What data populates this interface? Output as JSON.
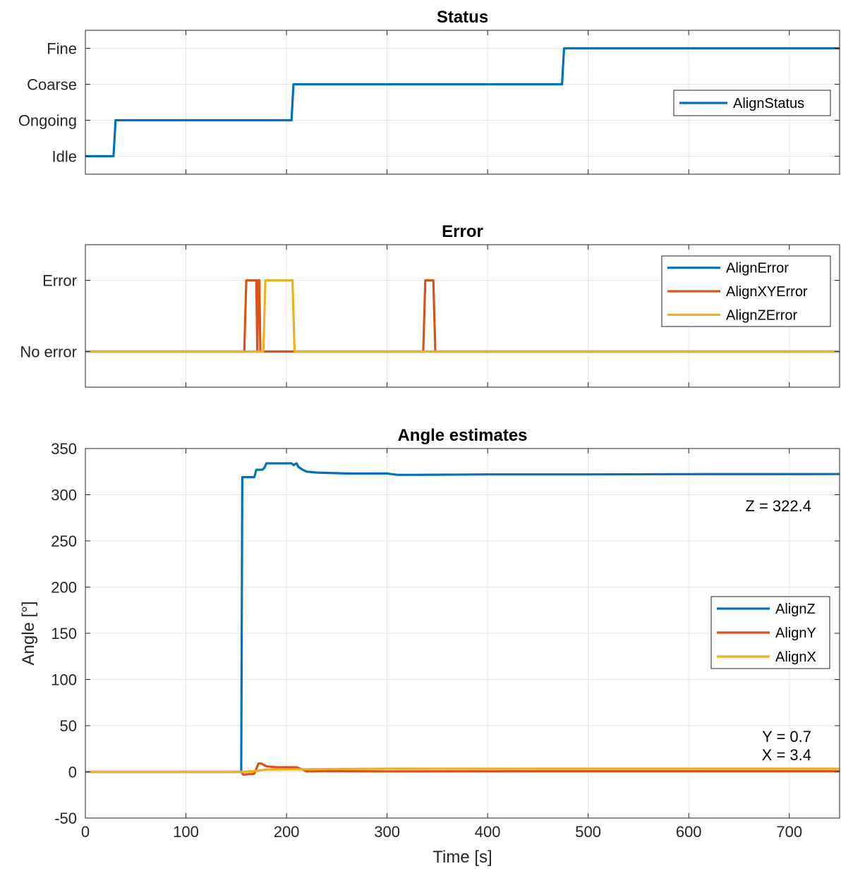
{
  "chart_data": [
    {
      "type": "line",
      "title": "Status",
      "xlim": [
        0,
        750
      ],
      "x_ticks": [
        0,
        100,
        200,
        300,
        400,
        500,
        600,
        700
      ],
      "ylim": [
        -0.5,
        3.5
      ],
      "y_ticks": [
        0,
        1,
        2,
        3
      ],
      "y_tick_labels": [
        "Idle",
        "Ongoing",
        "Coarse",
        "Fine"
      ],
      "grid": true,
      "legend_location": "right",
      "series": [
        {
          "name": "AlignStatus",
          "color": "#0072BD",
          "x": [
            0,
            28,
            30,
            205,
            207,
            474,
            476,
            750
          ],
          "y": [
            0,
            0,
            1,
            1,
            2,
            2,
            3,
            3
          ]
        }
      ]
    },
    {
      "type": "line",
      "title": "Error",
      "xlim": [
        0,
        750
      ],
      "x_ticks": [
        0,
        100,
        200,
        300,
        400,
        500,
        600,
        700
      ],
      "ylim": [
        -0.5,
        1.5
      ],
      "y_ticks": [
        0,
        1
      ],
      "y_tick_labels": [
        "No error",
        "Error"
      ],
      "grid": true,
      "legend_location": "top-right",
      "series": [
        {
          "name": "AlignError",
          "color": "#0072BD",
          "x": [
            0,
            750
          ],
          "y": [
            0,
            0
          ]
        },
        {
          "name": "AlignXYError",
          "color": "#D95319",
          "x": [
            0,
            158,
            160,
            170,
            171,
            172,
            173,
            174,
            175,
            205,
            206,
            336,
            338,
            346,
            348,
            750
          ],
          "y": [
            0,
            0,
            1,
            1,
            0,
            1,
            1,
            0,
            0,
            0,
            0,
            0,
            1,
            1,
            0,
            0
          ]
        },
        {
          "name": "AlignZError",
          "color": "#EDB120",
          "x": [
            0,
            177,
            179,
            206,
            208,
            750
          ],
          "y": [
            0,
            0,
            1,
            1,
            0,
            0
          ]
        }
      ]
    },
    {
      "type": "line",
      "title": "Angle estimates",
      "xlabel": "Time [s]",
      "ylabel": "Angle [°]",
      "xlim": [
        0,
        750
      ],
      "x_ticks": [
        0,
        100,
        200,
        300,
        400,
        500,
        600,
        700
      ],
      "ylim": [
        -50,
        350
      ],
      "y_ticks": [
        -50,
        0,
        50,
        100,
        150,
        200,
        250,
        300,
        350
      ],
      "grid": true,
      "legend_location": "right",
      "series": [
        {
          "name": "AlignZ",
          "color": "#0072BD",
          "x": [
            0,
            155,
            156,
            168,
            170,
            176,
            178,
            180,
            182,
            205,
            207,
            210,
            212,
            216,
            220,
            230,
            260,
            300,
            310,
            330,
            400,
            500,
            600,
            750
          ],
          "y": [
            0,
            0,
            319,
            319,
            327,
            327,
            329,
            334,
            334,
            334,
            332,
            334,
            330,
            327,
            325,
            324,
            323,
            323,
            321.5,
            321.5,
            322,
            322,
            322.3,
            322.4
          ]
        },
        {
          "name": "AlignY",
          "color": "#D95319",
          "x": [
            0,
            155,
            157,
            168,
            172,
            175,
            180,
            190,
            210,
            215,
            220,
            240,
            300,
            400,
            500,
            600,
            750
          ],
          "y": [
            0,
            0,
            -3,
            -2,
            9,
            9,
            6,
            5,
            5,
            3,
            0.5,
            0.8,
            0.5,
            0.6,
            0.7,
            0.7,
            0.7
          ]
        },
        {
          "name": "AlignX",
          "color": "#EDB120",
          "x": [
            0,
            155,
            170,
            180,
            200,
            230,
            260,
            300,
            400,
            500,
            600,
            750
          ],
          "y": [
            0,
            0,
            1,
            2.5,
            2.5,
            3,
            3.2,
            3.4,
            3.4,
            3.4,
            3.4,
            3.4
          ]
        }
      ],
      "annotations": [
        "Z = 322.4",
        "Y = 0.7",
        "X = 3.4"
      ]
    }
  ]
}
